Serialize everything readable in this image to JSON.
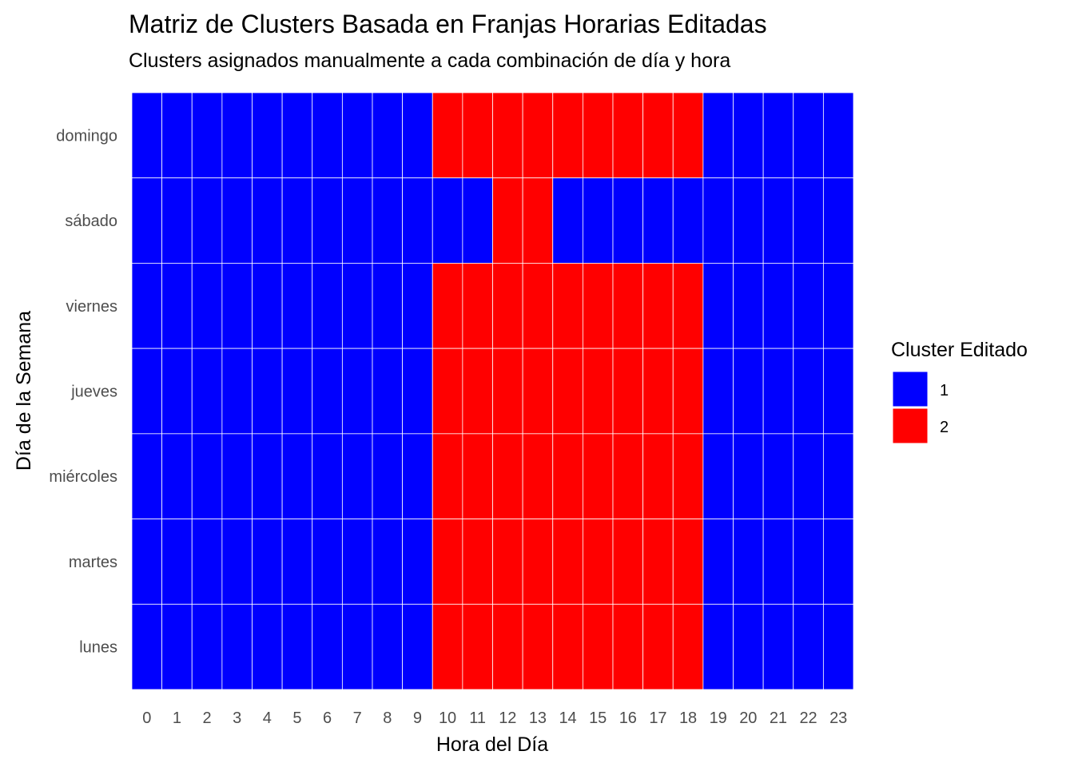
{
  "chart_data": {
    "type": "heatmap",
    "title": "Matriz de Clusters Basada en Franjas Horarias Editadas",
    "subtitle": "Clusters asignados manualmente a cada combinación de día y hora",
    "xlabel": "Hora del Día",
    "ylabel": "Día de la Semana",
    "x": [
      "0",
      "1",
      "2",
      "3",
      "4",
      "5",
      "6",
      "7",
      "8",
      "9",
      "10",
      "11",
      "12",
      "13",
      "14",
      "15",
      "16",
      "17",
      "18",
      "19",
      "20",
      "21",
      "22",
      "23"
    ],
    "y": [
      "domingo",
      "sábado",
      "viernes",
      "jueves",
      "miércoles",
      "martes",
      "lunes"
    ],
    "values": [
      [
        1,
        1,
        1,
        1,
        1,
        1,
        1,
        1,
        1,
        1,
        2,
        2,
        2,
        2,
        2,
        2,
        2,
        2,
        2,
        1,
        1,
        1,
        1,
        1
      ],
      [
        1,
        1,
        1,
        1,
        1,
        1,
        1,
        1,
        1,
        1,
        1,
        1,
        2,
        2,
        1,
        1,
        1,
        1,
        1,
        1,
        1,
        1,
        1,
        1
      ],
      [
        1,
        1,
        1,
        1,
        1,
        1,
        1,
        1,
        1,
        1,
        2,
        2,
        2,
        2,
        2,
        2,
        2,
        2,
        2,
        1,
        1,
        1,
        1,
        1
      ],
      [
        1,
        1,
        1,
        1,
        1,
        1,
        1,
        1,
        1,
        1,
        2,
        2,
        2,
        2,
        2,
        2,
        2,
        2,
        2,
        1,
        1,
        1,
        1,
        1
      ],
      [
        1,
        1,
        1,
        1,
        1,
        1,
        1,
        1,
        1,
        1,
        2,
        2,
        2,
        2,
        2,
        2,
        2,
        2,
        2,
        1,
        1,
        1,
        1,
        1
      ],
      [
        1,
        1,
        1,
        1,
        1,
        1,
        1,
        1,
        1,
        1,
        2,
        2,
        2,
        2,
        2,
        2,
        2,
        2,
        2,
        1,
        1,
        1,
        1,
        1
      ],
      [
        1,
        1,
        1,
        1,
        1,
        1,
        1,
        1,
        1,
        1,
        2,
        2,
        2,
        2,
        2,
        2,
        2,
        2,
        2,
        1,
        1,
        1,
        1,
        1
      ]
    ],
    "legend": {
      "title": "Cluster Editado",
      "placement": "right",
      "items": [
        {
          "label": "1",
          "color": "#0000ff"
        },
        {
          "label": "2",
          "color": "#ff0000"
        }
      ]
    },
    "cell_border_color": "#ffffff",
    "background": "#ffffff"
  }
}
